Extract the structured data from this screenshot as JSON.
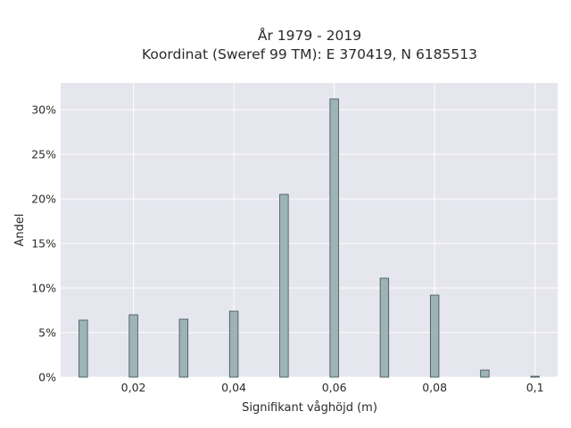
{
  "chart_data": {
    "type": "bar",
    "title_line1": "År 1979 - 2019",
    "title_line2": "Koordinat (Sweref 99 TM): E 370419, N 6185513",
    "xlabel": "Signifikant våghöjd (m)",
    "ylabel": "Andel",
    "xlim": [
      0.0055,
      0.1045
    ],
    "ylim": [
      0,
      0.33
    ],
    "x_ticks": [
      0.02,
      0.04,
      0.06,
      0.08,
      0.1
    ],
    "x_tick_labels": [
      "0,02",
      "0,04",
      "0,06",
      "0,08",
      "0,1"
    ],
    "y_ticks": [
      0,
      0.05,
      0.1,
      0.15,
      0.2,
      0.25,
      0.3
    ],
    "y_tick_labels": [
      "0%",
      "5%",
      "10%",
      "15%",
      "20%",
      "25%",
      "30%"
    ],
    "bar_width": 0.0017,
    "x": [
      0.01,
      0.02,
      0.03,
      0.04,
      0.05,
      0.06,
      0.07,
      0.08,
      0.09,
      0.1
    ],
    "values": [
      0.064,
      0.07,
      0.065,
      0.074,
      0.205,
      0.312,
      0.111,
      0.092,
      0.008,
      0.001
    ],
    "grid": true,
    "colors": {
      "plot_bg": "#e5e6ee",
      "grid": "#ffffff",
      "bar_fill": "#9db3b6",
      "bar_edge": "#3c4f52"
    }
  }
}
